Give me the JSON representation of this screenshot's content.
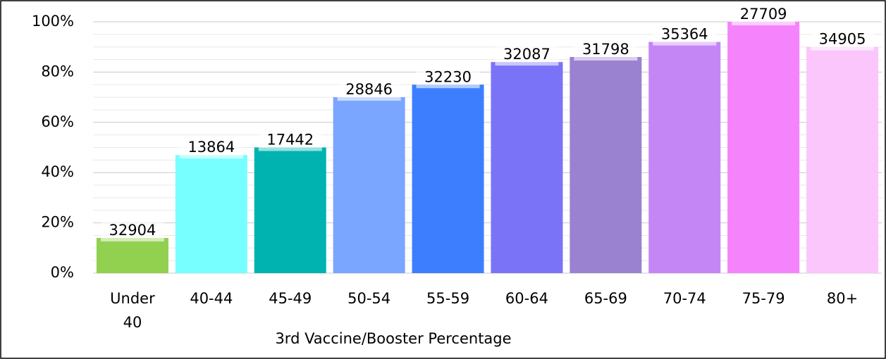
{
  "chart_data": {
    "type": "bar",
    "x_label": "3rd Vaccine/Booster Percentage",
    "categories": [
      "Under 40",
      "40-44",
      "45-49",
      "50-54",
      "55-59",
      "60-64",
      "65-69",
      "70-74",
      "75-79",
      "80+"
    ],
    "values": [
      14,
      47,
      50,
      70,
      75,
      84,
      86,
      92,
      100,
      90
    ],
    "data_labels": [
      32904,
      13864,
      17442,
      28846,
      32230,
      32087,
      31798,
      35364,
      27709,
      34905
    ],
    "colors": [
      "#92d050",
      "#77ffff",
      "#00b3b0",
      "#7aa6ff",
      "#3d7eff",
      "#7b73f7",
      "#9b82d0",
      "#c586f5",
      "#f583fb",
      "#fbc6fb"
    ],
    "ylim": [
      0,
      100
    ],
    "yticks": [
      {
        "value": 0,
        "label": "0%"
      },
      {
        "value": 20,
        "label": "20%"
      },
      {
        "value": 40,
        "label": "40%"
      },
      {
        "value": 60,
        "label": "60%"
      },
      {
        "value": 80,
        "label": "80%"
      },
      {
        "value": 100,
        "label": "100%"
      }
    ],
    "minor_yticks": [
      5,
      10,
      15,
      25,
      30,
      35,
      45,
      50,
      55,
      65,
      70,
      75,
      85,
      90,
      95
    ],
    "grid": true
  }
}
